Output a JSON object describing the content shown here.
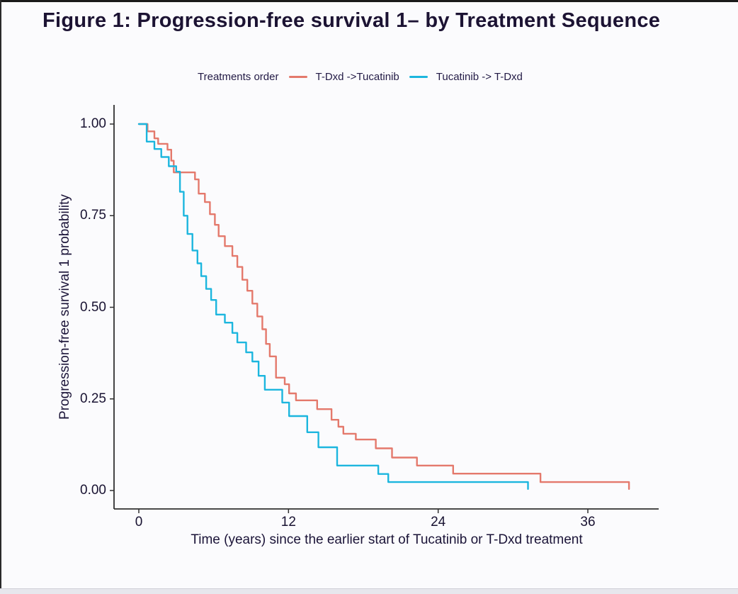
{
  "title": "Figure 1: Progression-free survival 1– by Treatment Sequence",
  "legend": {
    "title": "Treatments order",
    "entries": [
      {
        "label": "T-Dxd ->Tucatinib",
        "color": "#e4796c"
      },
      {
        "label": "Tucatinib -> T-Dxd",
        "color": "#1cb6de"
      }
    ]
  },
  "axes": {
    "x": {
      "label": "Time (years) since the earlier start of Tucatinib or T-Dxd treatment",
      "tick_labels": [
        "0",
        "12",
        "24",
        "36"
      ],
      "tick_values": [
        0,
        12,
        24,
        36
      ]
    },
    "y": {
      "label": "Progression-free survival 1 probability",
      "tick_labels": [
        "1.00",
        "0.75",
        "0.50",
        "0.25",
        "0.00"
      ],
      "tick_values": [
        1.0,
        0.75,
        0.5,
        0.25,
        0.0
      ]
    }
  },
  "colors": {
    "tdxd_first_line": "#e4796c",
    "tucatinib_first_line": "#1cb6de",
    "axis_line": "#303030",
    "title_text": "#1c1333",
    "background": "#fbfbfd"
  },
  "chart_data": {
    "type": "line",
    "subtype": "kaplan-meier-step",
    "title": "Figure 1: Progression-free survival 1– by Treatment Sequence",
    "xlabel": "Time (years) since the earlier start of Tucatinib or T-Dxd treatment",
    "ylabel": "Progression-free survival 1 probability",
    "xlim": [
      0,
      41.5
    ],
    "ylim": [
      0,
      1.0
    ],
    "x_ticks": [
      0,
      12,
      24,
      36
    ],
    "y_ticks": [
      0.0,
      0.25,
      0.5,
      0.75,
      1.0
    ],
    "grid": false,
    "legend_position": "top",
    "legend_title": "Treatments order",
    "series": [
      {
        "name": "T-Dxd ->Tucatinib",
        "color": "#e4796c",
        "steps": [
          [
            0,
            1.0
          ],
          [
            0.7,
            0.98
          ],
          [
            1.25,
            0.961
          ],
          [
            1.55,
            0.946
          ],
          [
            2.3,
            0.93
          ],
          [
            2.6,
            0.9
          ],
          [
            2.8,
            0.868
          ],
          [
            4.5,
            0.849
          ],
          [
            4.8,
            0.81
          ],
          [
            5.3,
            0.787
          ],
          [
            5.7,
            0.754
          ],
          [
            6.1,
            0.725
          ],
          [
            6.4,
            0.694
          ],
          [
            6.9,
            0.667
          ],
          [
            7.5,
            0.64
          ],
          [
            7.9,
            0.61
          ],
          [
            8.3,
            0.575
          ],
          [
            8.7,
            0.545
          ],
          [
            9.1,
            0.51
          ],
          [
            9.5,
            0.475
          ],
          [
            9.9,
            0.44
          ],
          [
            10.2,
            0.4
          ],
          [
            10.5,
            0.366
          ],
          [
            11.0,
            0.308
          ],
          [
            11.7,
            0.29
          ],
          [
            12.05,
            0.265
          ],
          [
            12.6,
            0.246
          ],
          [
            14.3,
            0.222
          ],
          [
            15.45,
            0.193
          ],
          [
            16.0,
            0.174
          ],
          [
            16.4,
            0.155
          ],
          [
            17.4,
            0.139
          ],
          [
            19.0,
            0.115
          ],
          [
            20.3,
            0.09
          ],
          [
            22.3,
            0.068
          ],
          [
            25.2,
            0.046
          ],
          [
            32.2,
            0.023
          ],
          [
            39.3,
            0.004
          ]
        ]
      },
      {
        "name": "Tucatinib -> T-Dxd",
        "color": "#1cb6de",
        "steps": [
          [
            0,
            1.0
          ],
          [
            0.63,
            0.952
          ],
          [
            1.25,
            0.932
          ],
          [
            1.8,
            0.91
          ],
          [
            2.4,
            0.885
          ],
          [
            3.0,
            0.87
          ],
          [
            3.3,
            0.815
          ],
          [
            3.6,
            0.75
          ],
          [
            3.9,
            0.7
          ],
          [
            4.3,
            0.655
          ],
          [
            4.7,
            0.62
          ],
          [
            5.0,
            0.585
          ],
          [
            5.4,
            0.55
          ],
          [
            5.8,
            0.52
          ],
          [
            6.2,
            0.48
          ],
          [
            6.9,
            0.458
          ],
          [
            7.5,
            0.43
          ],
          [
            7.9,
            0.404
          ],
          [
            8.6,
            0.377
          ],
          [
            9.1,
            0.352
          ],
          [
            9.6,
            0.313
          ],
          [
            10.1,
            0.275
          ],
          [
            11.5,
            0.24
          ],
          [
            12.05,
            0.203
          ],
          [
            13.5,
            0.159
          ],
          [
            14.4,
            0.118
          ],
          [
            15.9,
            0.068
          ],
          [
            19.2,
            0.045
          ],
          [
            20.0,
            0.023
          ],
          [
            31.2,
            0.004
          ]
        ]
      }
    ]
  }
}
